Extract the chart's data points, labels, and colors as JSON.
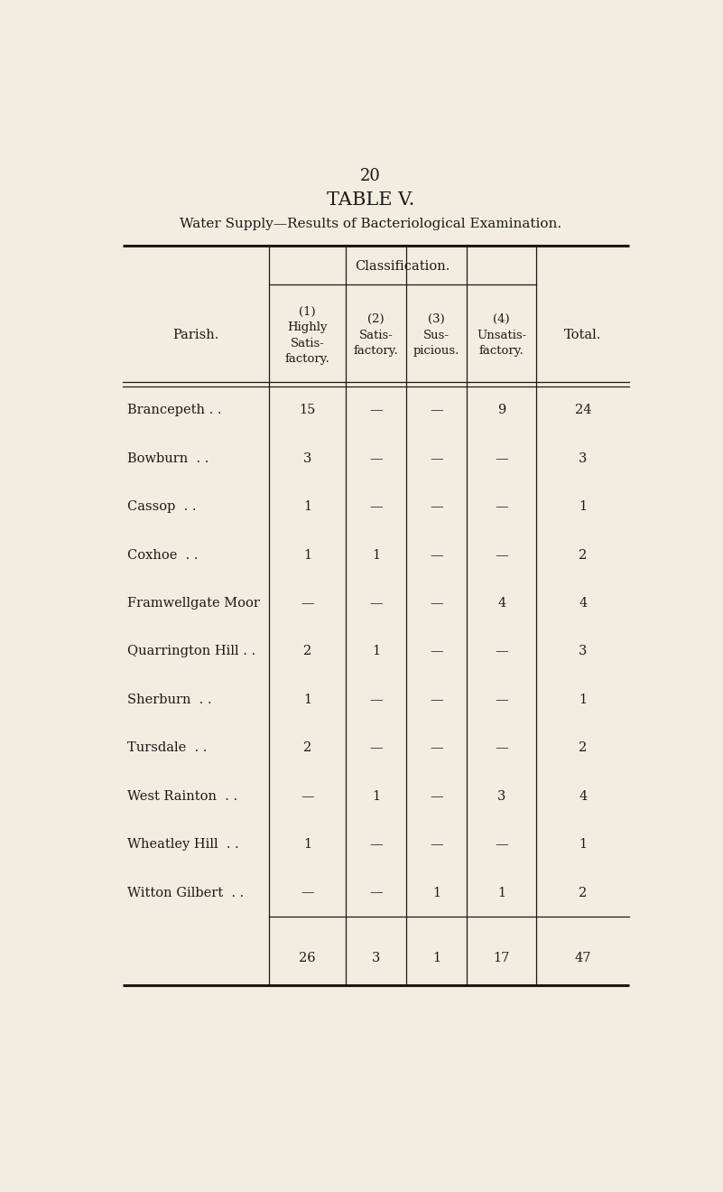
{
  "page_number": "20",
  "table_title": "TABLE V.",
  "subtitle": "Water Supply—Results of Bacteriological Examination.",
  "background_color": "#f2ede0",
  "text_color": "#1a1a1a",
  "classification_label": "Classification.",
  "rows": [
    [
      "Brancepeth . .",
      "15",
      "—",
      "—",
      "9",
      "24"
    ],
    [
      "Bowburn  . .",
      "3",
      "—",
      "—",
      "—",
      "3"
    ],
    [
      "Cassop  . .",
      "1",
      "—",
      "—",
      "—",
      "1"
    ],
    [
      "Coxhoe  . .",
      "1",
      "1",
      "—",
      "—",
      "2"
    ],
    [
      "Framwellgate Moor",
      "—",
      "—",
      "—",
      "4",
      "4"
    ],
    [
      "Quarrington Hill . .",
      "2",
      "1",
      "—",
      "—",
      "3"
    ],
    [
      "Sherburn  . .",
      "1",
      "—",
      "—",
      "—",
      "1"
    ],
    [
      "Tursdale  . .",
      "2",
      "—",
      "—",
      "—",
      "2"
    ],
    [
      "West Rainton  . .",
      "—",
      "1",
      "—",
      "3",
      "4"
    ],
    [
      "Wheatley Hill  . .",
      "1",
      "—",
      "—",
      "—",
      "1"
    ],
    [
      "Witton Gilbert  . .",
      "—",
      "—",
      "1",
      "1",
      "2"
    ]
  ],
  "totals_row": [
    "",
    "26",
    "3",
    "1",
    "17",
    "47"
  ]
}
